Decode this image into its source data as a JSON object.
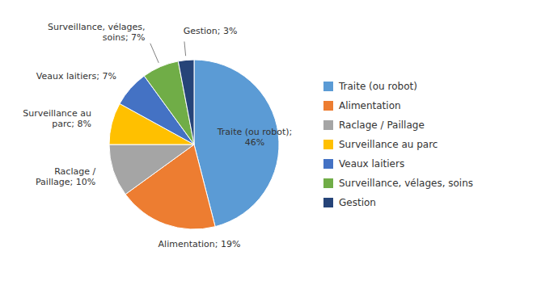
{
  "chart_data": {
    "type": "pie",
    "categories": [
      "Traite (ou robot)",
      "Alimentation",
      "Raclage / Paillage",
      "Surveillance au parc",
      "Veaux laitiers",
      "Surveillance, vélages, soins",
      "Gestion"
    ],
    "values": [
      46,
      19,
      10,
      8,
      7,
      7,
      3
    ],
    "value_labels": [
      "Traite (ou robot);\n46%",
      "Alimentation; 19%",
      "Raclage /\nPaillage; 10%",
      "Surveillance au\nparc; 8%",
      "Veaux laitiers; 7%",
      "Surveillance, vélages,\nsoins; 7%",
      "Gestion; 3%"
    ],
    "colors": [
      "#5B9BD5",
      "#ED7D31",
      "#A5A5A5",
      "#FFC000",
      "#4472C4",
      "#70AD47",
      "#264478"
    ],
    "data_labels": true,
    "legend": "right"
  }
}
